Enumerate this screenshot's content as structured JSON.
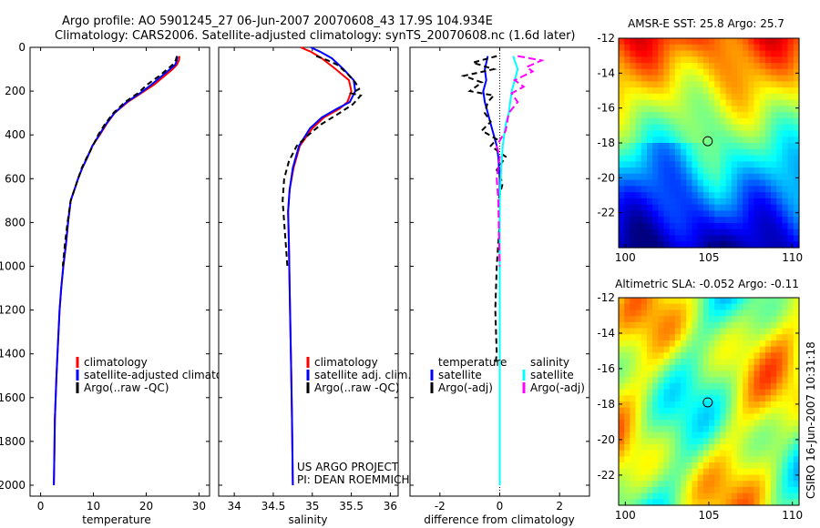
{
  "header": {
    "line1": "Argo profile: AO 5901245_27 06-Jun-2007 20070608_43 17.9S 104.934E",
    "line2": "Climatology: CARS2006. Satellite-adjusted climatology: synTS_20070608.nc (1.6d later)"
  },
  "colors": {
    "climatology": "#ff0000",
    "satellite": "#0000ff",
    "argo": "#000000",
    "salinity_satellite": "#00ffff",
    "salinity_argo": "#ff00ff"
  },
  "chart_data": [
    {
      "type": "line",
      "id": "temperature",
      "xlabel": "temperature",
      "xlim": [
        -2,
        32
      ],
      "ylim": [
        2050,
        0
      ],
      "xticks": [
        0,
        10,
        20,
        30
      ],
      "yticks": [
        0,
        200,
        400,
        600,
        800,
        1000,
        1200,
        1400,
        1600,
        1800,
        2000
      ],
      "series": [
        {
          "name": "climatology",
          "color": "#ff0000",
          "dash": "",
          "x": [
            26.3,
            26.2,
            25.8,
            25,
            23.5,
            21.5,
            19,
            16.5,
            14,
            12.5,
            11.2,
            9.8,
            8.9,
            7.9,
            7.1,
            6.4,
            5.7,
            5.2,
            4.8,
            4.3,
            3.9,
            3.6,
            3.2,
            3,
            2.7,
            2.6,
            2.5
          ],
          "y": [
            40,
            60,
            80,
            100,
            130,
            170,
            210,
            250,
            300,
            350,
            400,
            450,
            500,
            550,
            600,
            650,
            700,
            800,
            900,
            1000,
            1100,
            1200,
            1400,
            1500,
            1700,
            1850,
            2000
          ]
        },
        {
          "name": "satellite-adjusted climatology",
          "color": "#0000ff",
          "dash": "",
          "x": [
            25.9,
            25.8,
            25.5,
            24.5,
            23,
            21,
            18.8,
            16.3,
            14,
            12.4,
            11.1,
            9.8,
            8.9,
            7.9,
            7.1,
            6.4,
            5.7,
            5.2,
            4.8,
            4.3,
            3.9,
            3.6,
            3.2,
            3,
            2.7,
            2.6,
            2.5
          ],
          "y": [
            40,
            60,
            80,
            100,
            130,
            170,
            210,
            250,
            300,
            350,
            400,
            450,
            500,
            550,
            600,
            650,
            700,
            800,
            900,
            1000,
            1100,
            1200,
            1400,
            1500,
            1700,
            1850,
            2000
          ]
        },
        {
          "name": "Argo(..raw -QC)",
          "color": "#000000",
          "dash": "6,4",
          "x": [
            25.8,
            25.6,
            25,
            24,
            22.5,
            20.2,
            18.4,
            16,
            13.8,
            12.2,
            10.9,
            9.9,
            8.8,
            7.8,
            7.1,
            6.4,
            5.7,
            5.1,
            4.6,
            4.2
          ],
          "y": [
            40,
            60,
            80,
            100,
            130,
            170,
            210,
            250,
            300,
            350,
            400,
            450,
            500,
            550,
            600,
            650,
            700,
            800,
            900,
            1000
          ]
        }
      ],
      "legend": {
        "entries": [
          "climatology",
          "satellite-adjusted climatology",
          "Argo(..raw -QC)"
        ],
        "position": "lower-right"
      }
    },
    {
      "type": "line",
      "id": "salinity",
      "xlabel": "salinity",
      "xlim": [
        33.8,
        36.1
      ],
      "ylim": [
        2050,
        0
      ],
      "xticks": [
        34,
        34.5,
        35,
        35.5,
        36
      ],
      "series": [
        {
          "name": "climatology",
          "color": "#ff0000",
          "dash": "",
          "x": [
            34.85,
            34.98,
            35.12,
            35.3,
            35.47,
            35.5,
            35.45,
            35.35,
            35.15,
            35,
            34.84,
            34.76,
            34.71,
            34.69,
            34.7,
            34.71,
            34.72,
            34.73,
            34.74,
            34.75
          ],
          "y": [
            0,
            20,
            50,
            100,
            150,
            200,
            250,
            280,
            320,
            370,
            450,
            550,
            650,
            750,
            900,
            1100,
            1300,
            1500,
            1700,
            2000
          ]
        },
        {
          "name": "satellite adj. clim.",
          "color": "#0000ff",
          "dash": "",
          "x": [
            34.98,
            35.1,
            35.25,
            35.4,
            35.53,
            35.55,
            35.48,
            35.32,
            35.12,
            34.97,
            34.83,
            34.75,
            34.71,
            34.69,
            34.7,
            34.71,
            34.72,
            34.73,
            34.74,
            34.75
          ],
          "y": [
            0,
            20,
            50,
            100,
            150,
            200,
            250,
            280,
            320,
            370,
            450,
            550,
            650,
            750,
            900,
            1100,
            1300,
            1500,
            1700,
            2000
          ]
        },
        {
          "name": "Argo(..raw -QC)",
          "color": "#000000",
          "dash": "6,4",
          "x": [
            35.05,
            35.2,
            35.32,
            35.45,
            35.55,
            35.6,
            35.5,
            35.62,
            35.52,
            35.35,
            35.12,
            34.95,
            34.8,
            34.7,
            34.64,
            34.62,
            34.64,
            34.66,
            34.68
          ],
          "y": [
            40,
            60,
            80,
            120,
            160,
            190,
            210,
            220,
            260,
            300,
            350,
            400,
            450,
            520,
            600,
            700,
            800,
            900,
            1000
          ]
        }
      ],
      "legend": {
        "entries": [
          "climatology",
          "satellite adj. clim.",
          "Argo(..raw -QC)"
        ],
        "position": "lower-right"
      },
      "annotations": [
        "US ARGO PROJECT",
        "PI: DEAN ROEMMICH"
      ]
    },
    {
      "type": "line",
      "id": "difference",
      "xlabel": "difference from climatology",
      "xlim": [
        -3,
        3
      ],
      "ylim": [
        2050,
        0
      ],
      "xticks": [
        -2,
        0,
        2
      ],
      "series": [
        {
          "name": "temperature satellite",
          "color": "#0000ff",
          "dash": "",
          "x": [
            -0.4,
            -0.5,
            -0.45,
            -0.55,
            -0.5,
            -0.4,
            -0.3,
            -0.2,
            -0.1,
            -0.05,
            0,
            0
          ],
          "y": [
            40,
            100,
            150,
            200,
            250,
            300,
            350,
            400,
            450,
            500,
            600,
            2000
          ]
        },
        {
          "name": "temperature Argo(-adj)",
          "color": "#000000",
          "dash": "6,4",
          "x": [
            -0.1,
            -0.9,
            -0.2,
            -1.2,
            -0.6,
            -1.0,
            -0.2,
            -0.4,
            -0.5,
            -0.3,
            -0.6,
            -0.1,
            -0.3,
            0.2,
            -0.1,
            0.1,
            -0.05,
            0,
            -0.1,
            -0.15,
            -0.1,
            -0.15
          ],
          "y": [
            40,
            70,
            100,
            130,
            160,
            200,
            220,
            250,
            300,
            340,
            380,
            420,
            450,
            500,
            560,
            620,
            700,
            800,
            1000,
            1200,
            1400,
            1450
          ]
        },
        {
          "name": "salinity satellite",
          "color": "#00ffff",
          "dash": "",
          "x": [
            0.45,
            0.5,
            0.6,
            0.5,
            0.4,
            0.35,
            0.3,
            0.2,
            0.15,
            0.1,
            0.05,
            0,
            0
          ],
          "y": [
            40,
            60,
            100,
            150,
            200,
            250,
            300,
            350,
            400,
            450,
            550,
            700,
            2000
          ]
        },
        {
          "name": "salinity Argo(-adj)",
          "color": "#ff00ff",
          "dash": "8,4",
          "x": [
            0.6,
            1.4,
            0.9,
            1.1,
            0.5,
            0.8,
            0.4,
            0.6,
            0.3,
            0.2,
            -0.1,
            0,
            -0.1,
            -0.05,
            0
          ],
          "y": [
            40,
            60,
            90,
            110,
            150,
            180,
            210,
            250,
            300,
            380,
            450,
            500,
            600,
            700,
            1000
          ]
        }
      ],
      "legend": {
        "groups": [
          {
            "title": "temperature",
            "entries": [
              "satellite",
              "Argo(-adj)"
            ]
          },
          {
            "title": "salinity",
            "entries": [
              "satellite",
              "Argo(-adj)"
            ]
          }
        ],
        "position": "lower"
      }
    },
    {
      "type": "heatmap",
      "id": "sst-map",
      "title": "AMSR-E SST: 25.8 Argo: 25.7",
      "xlim": [
        99.6,
        110.4
      ],
      "ylim": [
        -24,
        -12
      ],
      "xticks": [
        100,
        105,
        110
      ],
      "yticks": [
        -12,
        -14,
        -16,
        -18,
        -20,
        -22
      ],
      "marker": {
        "lon": 104.934,
        "lat": -17.9
      }
    },
    {
      "type": "heatmap",
      "id": "sla-map",
      "title": "Altimetric SLA: -0.052 Argo: -0.11",
      "xlim": [
        99.6,
        110.4
      ],
      "ylim": [
        -23.7,
        -12
      ],
      "xticks": [
        100,
        105,
        110
      ],
      "yticks": [
        -12,
        -14,
        -16,
        -18,
        -20,
        -22
      ],
      "marker": {
        "lon": 104.934,
        "lat": -17.9
      }
    }
  ],
  "footer_stamp": "CSIRO 16-Jun-2007 10:31:18"
}
